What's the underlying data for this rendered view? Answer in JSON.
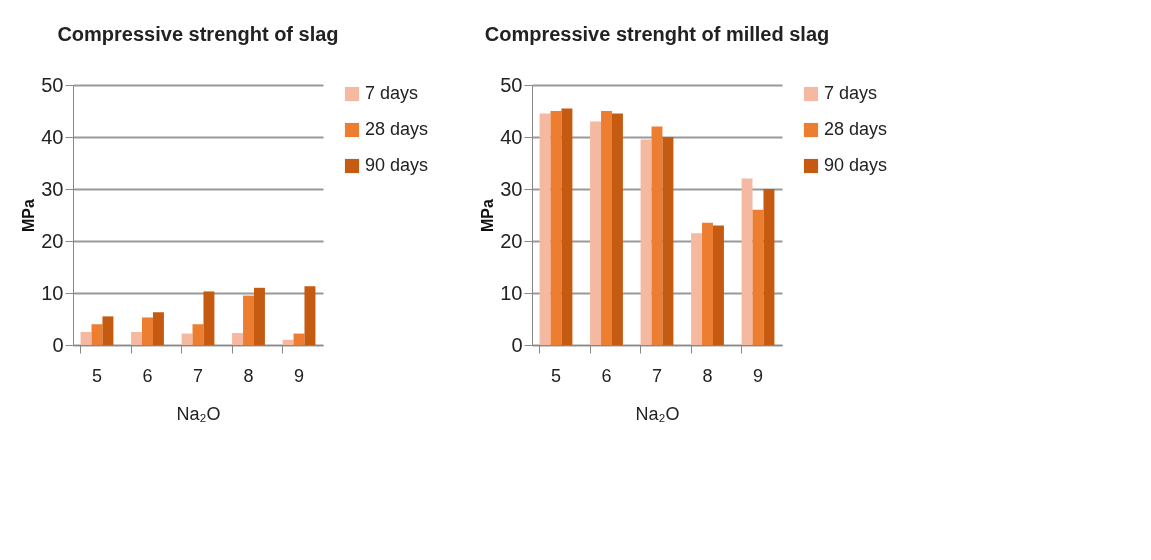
{
  "chart_data": [
    {
      "type": "bar",
      "title": "Compressive strenght of slag",
      "xlabel": "Na₂O",
      "ylabel": "MPa",
      "categories": [
        "5",
        "6",
        "7",
        "8",
        "9"
      ],
      "series": [
        {
          "name": "7 days",
          "color": "#f4b9a0",
          "values": [
            2.5,
            2.5,
            2.2,
            2.3,
            1
          ]
        },
        {
          "name": "28 days",
          "color": "#ed7d31",
          "values": [
            4,
            5.3,
            4,
            9.5,
            2.2
          ]
        },
        {
          "name": "90 days",
          "color": "#c55a11",
          "values": [
            5.5,
            6.3,
            10.3,
            11,
            11.3
          ]
        }
      ],
      "ylim": [
        0,
        50
      ],
      "yticks": [
        0,
        10,
        20,
        30,
        40,
        50
      ],
      "grid": "y",
      "legend": "right"
    },
    {
      "type": "bar",
      "title": "Compressive strenght of milled slag",
      "xlabel": "Na₂O",
      "ylabel": "MPa",
      "categories": [
        "5",
        "6",
        "7",
        "8",
        "9"
      ],
      "series": [
        {
          "name": "7 days",
          "color": "#f4b9a0",
          "values": [
            44.5,
            43,
            39.5,
            21.5,
            32
          ]
        },
        {
          "name": "28 days",
          "color": "#ed7d31",
          "values": [
            45,
            45,
            42,
            23.5,
            26
          ]
        },
        {
          "name": "90 days",
          "color": "#c55a11",
          "values": [
            45.5,
            44.5,
            40,
            23,
            30
          ]
        }
      ],
      "ylim": [
        0,
        50
      ],
      "yticks": [
        0,
        10,
        20,
        30,
        40,
        50
      ],
      "grid": "y",
      "legend": "right"
    }
  ]
}
